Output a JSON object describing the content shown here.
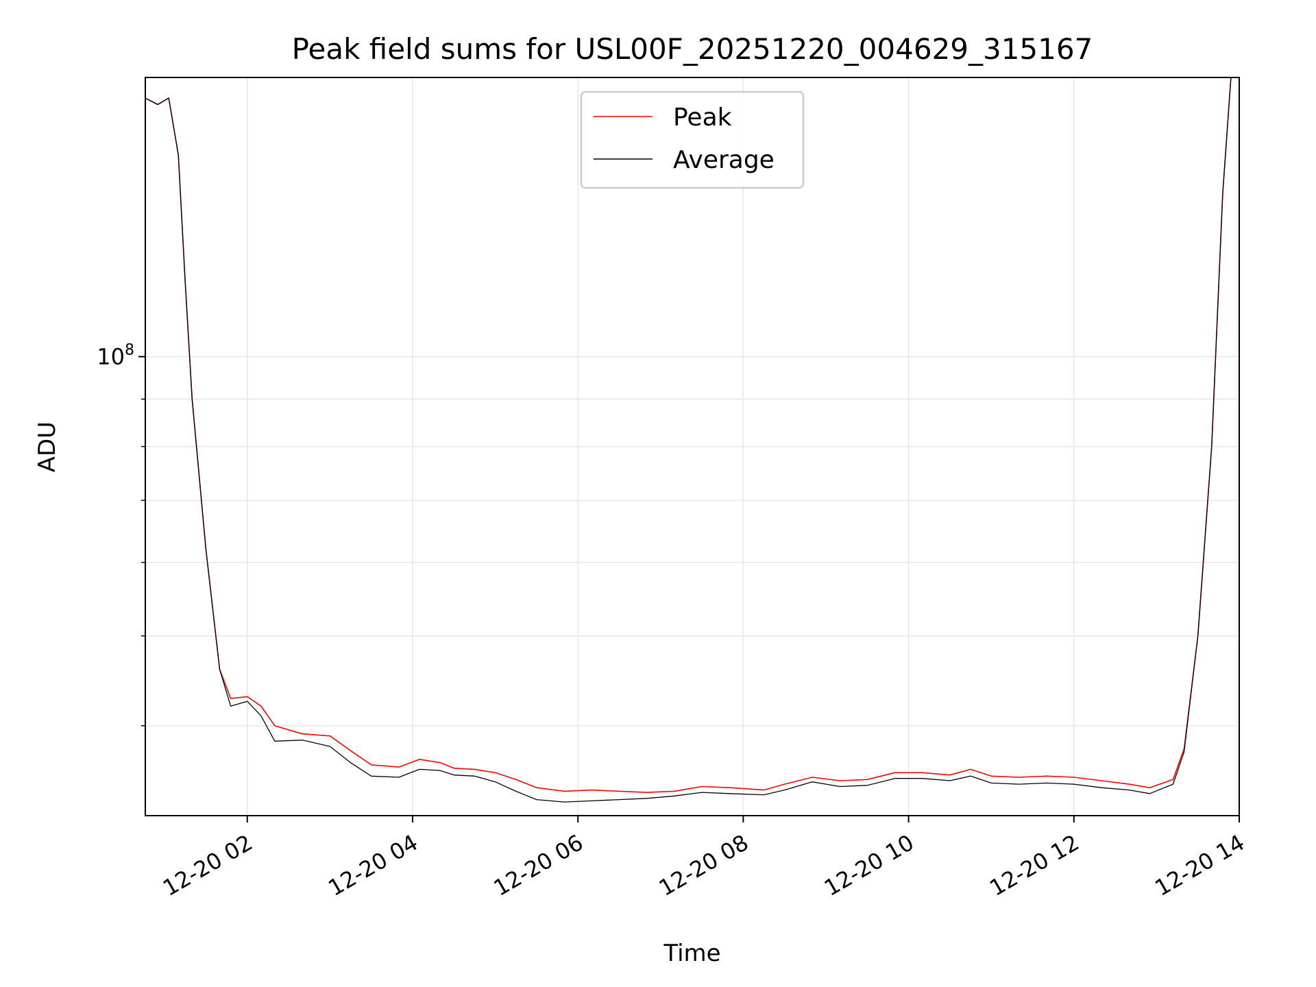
{
  "chart_data": {
    "type": "line",
    "title": "Peak field sums for USL00F_20251220_004629_315167",
    "xlabel": "Time",
    "ylabel": "ADU",
    "y_scale": "log",
    "ylim": [
      32000000,
      200000000
    ],
    "xlim": [
      "2025-12-20 00:46",
      "2025-12-20 14:00"
    ],
    "grid": true,
    "legend_position": "top-center",
    "x_ticks": [
      {
        "t": "2025-12-20 02:00",
        "label": "12-20 02"
      },
      {
        "t": "2025-12-20 04:00",
        "label": "12-20 04"
      },
      {
        "t": "2025-12-20 06:00",
        "label": "12-20 06"
      },
      {
        "t": "2025-12-20 08:00",
        "label": "12-20 08"
      },
      {
        "t": "2025-12-20 10:00",
        "label": "12-20 10"
      },
      {
        "t": "2025-12-20 12:00",
        "label": "12-20 12"
      },
      {
        "t": "2025-12-20 14:00",
        "label": "12-20 14"
      }
    ],
    "y_major_ticks": [
      {
        "value": 100000000,
        "base": "10",
        "exp": "8"
      }
    ],
    "y_minor_ticks": [
      40000000,
      50000000,
      60000000,
      70000000,
      80000000,
      90000000,
      200000000
    ],
    "series": [
      {
        "name": "Peak",
        "color": "#ff0000",
        "x": [
          "2025-12-20 00:46",
          "2025-12-20 00:55",
          "2025-12-20 01:03",
          "2025-12-20 01:10",
          "2025-12-20 01:15",
          "2025-12-20 01:20",
          "2025-12-20 01:30",
          "2025-12-20 01:40",
          "2025-12-20 01:48",
          "2025-12-20 02:00",
          "2025-12-20 02:10",
          "2025-12-20 02:20",
          "2025-12-20 02:40",
          "2025-12-20 03:00",
          "2025-12-20 03:15",
          "2025-12-20 03:30",
          "2025-12-20 03:50",
          "2025-12-20 04:05",
          "2025-12-20 04:20",
          "2025-12-20 04:30",
          "2025-12-20 04:45",
          "2025-12-20 05:00",
          "2025-12-20 05:15",
          "2025-12-20 05:30",
          "2025-12-20 05:50",
          "2025-12-20 06:10",
          "2025-12-20 06:30",
          "2025-12-20 06:50",
          "2025-12-20 07:10",
          "2025-12-20 07:30",
          "2025-12-20 07:50",
          "2025-12-20 08:15",
          "2025-12-20 08:30",
          "2025-12-20 08:50",
          "2025-12-20 09:10",
          "2025-12-20 09:30",
          "2025-12-20 09:50",
          "2025-12-20 10:10",
          "2025-12-20 10:30",
          "2025-12-20 10:45",
          "2025-12-20 11:00",
          "2025-12-20 11:20",
          "2025-12-20 11:40",
          "2025-12-20 12:00",
          "2025-12-20 12:20",
          "2025-12-20 12:40",
          "2025-12-20 12:55",
          "2025-12-20 13:12",
          "2025-12-20 13:20",
          "2025-12-20 13:30",
          "2025-12-20 13:40",
          "2025-12-20 13:48",
          "2025-12-20 13:54"
        ],
        "values": [
          190000000,
          187000000,
          190000000,
          165000000,
          120000000,
          90000000,
          62000000,
          46000000,
          42800000,
          43000000,
          42000000,
          40000000,
          39200000,
          39000000,
          37600000,
          36300000,
          36100000,
          36800000,
          36500000,
          36000000,
          35900000,
          35600000,
          35000000,
          34300000,
          34000000,
          34100000,
          34000000,
          33900000,
          34000000,
          34400000,
          34300000,
          34100000,
          34600000,
          35200000,
          34900000,
          35000000,
          35600000,
          35600000,
          35400000,
          35900000,
          35300000,
          35200000,
          35300000,
          35200000,
          34900000,
          34600000,
          34300000,
          35000000,
          37800000,
          50000000,
          80000000,
          150000000,
          200000000
        ]
      },
      {
        "name": "Average",
        "color": "#000000",
        "x": [
          "2025-12-20 00:46",
          "2025-12-20 00:55",
          "2025-12-20 01:03",
          "2025-12-20 01:10",
          "2025-12-20 01:15",
          "2025-12-20 01:20",
          "2025-12-20 01:30",
          "2025-12-20 01:40",
          "2025-12-20 01:48",
          "2025-12-20 02:00",
          "2025-12-20 02:10",
          "2025-12-20 02:20",
          "2025-12-20 02:40",
          "2025-12-20 03:00",
          "2025-12-20 03:15",
          "2025-12-20 03:30",
          "2025-12-20 03:50",
          "2025-12-20 04:05",
          "2025-12-20 04:20",
          "2025-12-20 04:30",
          "2025-12-20 04:45",
          "2025-12-20 05:00",
          "2025-12-20 05:15",
          "2025-12-20 05:30",
          "2025-12-20 05:50",
          "2025-12-20 06:10",
          "2025-12-20 06:30",
          "2025-12-20 06:50",
          "2025-12-20 07:10",
          "2025-12-20 07:30",
          "2025-12-20 07:50",
          "2025-12-20 08:15",
          "2025-12-20 08:30",
          "2025-12-20 08:50",
          "2025-12-20 09:10",
          "2025-12-20 09:30",
          "2025-12-20 09:50",
          "2025-12-20 10:10",
          "2025-12-20 10:30",
          "2025-12-20 10:45",
          "2025-12-20 11:00",
          "2025-12-20 11:20",
          "2025-12-20 11:40",
          "2025-12-20 12:00",
          "2025-12-20 12:20",
          "2025-12-20 12:40",
          "2025-12-20 12:55",
          "2025-12-20 13:12",
          "2025-12-20 13:20",
          "2025-12-20 13:30",
          "2025-12-20 13:40",
          "2025-12-20 13:48",
          "2025-12-20 13:54"
        ],
        "values": [
          190000000,
          187000000,
          190000000,
          165000000,
          120000000,
          90000000,
          62000000,
          46000000,
          42000000,
          42500000,
          41000000,
          38500000,
          38600000,
          38000000,
          36500000,
          35300000,
          35200000,
          35900000,
          35800000,
          35400000,
          35300000,
          34800000,
          34000000,
          33300000,
          33100000,
          33200000,
          33300000,
          33400000,
          33600000,
          33900000,
          33800000,
          33700000,
          34100000,
          34800000,
          34400000,
          34500000,
          35100000,
          35100000,
          34900000,
          35300000,
          34700000,
          34600000,
          34700000,
          34600000,
          34300000,
          34100000,
          33800000,
          34600000,
          37500000,
          50000000,
          80000000,
          150000000,
          200000000
        ]
      }
    ]
  }
}
